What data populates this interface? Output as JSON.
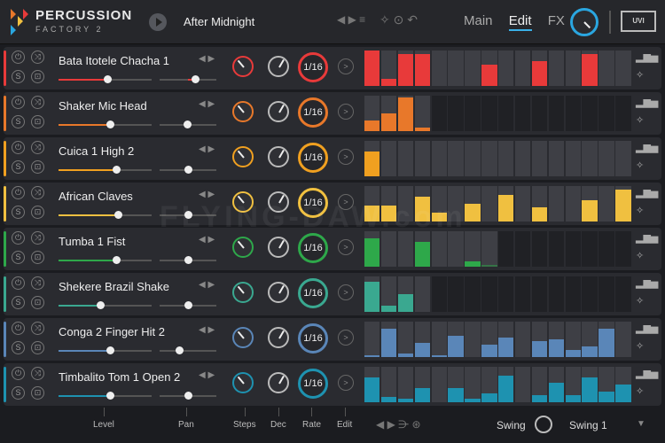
{
  "header": {
    "brand_line1": "PERCUSSION",
    "brand_line2": "FACTORY 2",
    "preset_name": "After Midnight",
    "tabs": [
      {
        "label": "Main"
      },
      {
        "label": "Edit",
        "active": true
      },
      {
        "label": "FX"
      }
    ],
    "logo_text": "UVI"
  },
  "tracks": [
    {
      "name": "Bata Itotele Chacha 1",
      "color": "#e83a3a",
      "level": 0.52,
      "pan": 0.62,
      "rate": "1/16",
      "steps": [
        1,
        1,
        1,
        1,
        1,
        1,
        1,
        1,
        1,
        1,
        1,
        1,
        1,
        1,
        1,
        1
      ],
      "values": [
        1,
        0.2,
        0.9,
        0.9,
        0,
        0,
        0,
        0.6,
        0,
        0,
        0.7,
        0,
        0,
        0.9,
        0,
        0
      ]
    },
    {
      "name": "Shaker Mic Head",
      "color": "#e8782a",
      "level": 0.55,
      "pan": 0.48,
      "rate": "1/16",
      "steps": [
        1,
        1,
        1,
        1,
        0,
        0,
        0,
        0,
        0,
        0,
        0,
        0,
        0,
        0,
        0,
        0
      ],
      "values": [
        0.3,
        0.5,
        0.95,
        0.1,
        0,
        0,
        0,
        0,
        0,
        0,
        0,
        0,
        0,
        0,
        0,
        0
      ]
    },
    {
      "name": "Cuica 1 High 2",
      "color": "#f0a020",
      "level": 0.62,
      "pan": 0.5,
      "rate": "1/16",
      "steps": [
        1,
        1,
        1,
        1,
        1,
        1,
        1,
        1,
        1,
        1,
        1,
        1,
        1,
        1,
        1,
        1
      ],
      "values": [
        0.7,
        0,
        0,
        0,
        0,
        0,
        0,
        0,
        0,
        0,
        0,
        0,
        0,
        0,
        0,
        0
      ]
    },
    {
      "name": "African Claves",
      "color": "#f0c040",
      "level": 0.64,
      "pan": 0.5,
      "rate": "1/16",
      "steps": [
        1,
        1,
        1,
        1,
        1,
        1,
        1,
        1,
        1,
        1,
        1,
        1,
        1,
        1,
        1,
        1
      ],
      "values": [
        0.45,
        0.45,
        0,
        0.7,
        0.25,
        0,
        0.5,
        0,
        0.75,
        0,
        0.4,
        0,
        0,
        0.6,
        0,
        0.9
      ]
    },
    {
      "name": "Tumba 1 Fist",
      "color": "#2ea84a",
      "level": 0.62,
      "pan": 0.5,
      "rate": "1/16",
      "steps": [
        1,
        1,
        1,
        1,
        1,
        1,
        1,
        1,
        0,
        0,
        0,
        0,
        0,
        0,
        0,
        0
      ],
      "values": [
        0.8,
        0,
        0,
        0.7,
        0,
        0,
        0.15,
        0.05,
        0,
        0,
        0,
        0,
        0,
        0,
        0,
        0
      ],
      "dim": [
        0,
        0,
        0,
        0,
        0,
        0,
        0,
        1,
        0,
        0,
        0,
        0,
        0,
        0,
        0,
        0
      ]
    },
    {
      "name": "Shekere Brazil Shake",
      "color": "#3aa890",
      "level": 0.45,
      "pan": 0.5,
      "rate": "1/16",
      "steps": [
        1,
        1,
        1,
        1,
        0,
        0,
        0,
        0,
        0,
        0,
        0,
        0,
        0,
        0,
        0,
        0
      ],
      "values": [
        0.85,
        0.18,
        0.5,
        0,
        0,
        0,
        0,
        0,
        0,
        0,
        0,
        0,
        0,
        0,
        0,
        0
      ]
    },
    {
      "name": "Conga 2 Finger Hit 2",
      "color": "#5a86b8",
      "level": 0.55,
      "pan": 0.35,
      "rate": "1/16",
      "steps": [
        1,
        1,
        1,
        1,
        1,
        1,
        1,
        1,
        1,
        1,
        1,
        1,
        1,
        1,
        1,
        1
      ],
      "values": [
        0.05,
        0.8,
        0.1,
        0.4,
        0.05,
        0.6,
        0,
        0.35,
        0.55,
        0,
        0.45,
        0.5,
        0.2,
        0.3,
        0.8,
        0
      ]
    },
    {
      "name": "Timbalito Tom 1 Open 2",
      "color": "#1e92b0",
      "level": 0.55,
      "pan": 0.5,
      "rate": "1/16",
      "steps": [
        1,
        1,
        1,
        1,
        1,
        1,
        1,
        1,
        1,
        1,
        1,
        1,
        1,
        1,
        1,
        1
      ],
      "values": [
        0.7,
        0.15,
        0.1,
        0.4,
        0,
        0.4,
        0.1,
        0.25,
        0.75,
        0,
        0.2,
        0.55,
        0.2,
        0.7,
        0.3,
        0.5
      ]
    }
  ],
  "footer": {
    "labels": [
      "Level",
      "Pan",
      "Steps",
      "Dec",
      "Rate",
      "Edit"
    ],
    "swing_label": "Swing",
    "swing_value": "Swing 1"
  },
  "watermark": "FLYING-DAW.com"
}
